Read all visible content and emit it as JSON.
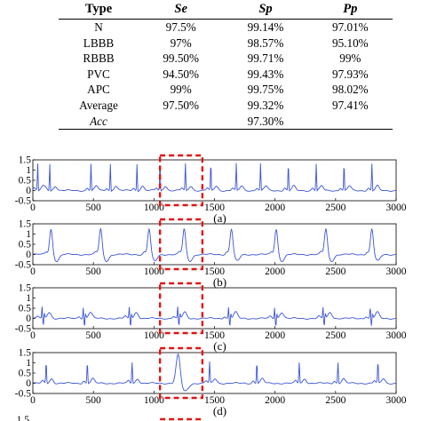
{
  "table": {
    "headers": [
      "Type",
      "Se",
      "Sp",
      "Pp"
    ],
    "rows": [
      [
        "N",
        "97.5%",
        "99.14%",
        "97.01%"
      ],
      [
        "LBBB",
        "97%",
        "98.57%",
        "95.10%"
      ],
      [
        "RBBB",
        "99.50%",
        "99.71%",
        "99%"
      ],
      [
        "PVC",
        "94.50%",
        "99.43%",
        "97.93%"
      ],
      [
        "APC",
        "99%",
        "99.75%",
        "98.02%"
      ],
      [
        "Average",
        "97.50%",
        "99.32%",
        "97.41%"
      ],
      [
        "Acc",
        "",
        "97.30%",
        ""
      ]
    ]
  },
  "chart_data": [
    {
      "type": "line",
      "panel_label": "(a)",
      "beat": "normal",
      "xlim": [
        0,
        3000
      ],
      "ylim": [
        -0.5,
        1.5
      ],
      "xticks": [
        0,
        500,
        1000,
        1500,
        2000,
        2500,
        3000
      ],
      "yticks": [
        -0.5,
        0,
        0.5,
        1,
        1.5
      ],
      "highlight_x": [
        1050,
        1400
      ],
      "beat_x": [
        40,
        140,
        480,
        640,
        860,
        1050,
        1260,
        1470,
        1680,
        1880,
        2110,
        2340,
        2570,
        2800
      ]
    },
    {
      "type": "line",
      "panel_label": "(b)",
      "beat": "lbbb",
      "xlim": [
        0,
        3000
      ],
      "ylim": [
        -0.5,
        1.5
      ],
      "xticks": [
        0,
        500,
        1000,
        1500,
        2000,
        2500,
        3000
      ],
      "yticks": [
        -0.5,
        0,
        0.5,
        1,
        1.5
      ],
      "highlight_x": [
        1050,
        1400
      ],
      "beat_x": [
        150,
        560,
        960,
        1250,
        1640,
        2010,
        2420,
        2800
      ]
    },
    {
      "type": "line",
      "panel_label": "(c)",
      "beat": "rbbb",
      "xlim": [
        0,
        3000
      ],
      "ylim": [
        -0.5,
        1.5
      ],
      "xticks": [
        0,
        500,
        1000,
        1500,
        2000,
        2500,
        3000
      ],
      "yticks": [
        -0.5,
        0,
        0.5,
        1,
        1.5
      ],
      "highlight_x": [
        1050,
        1400
      ],
      "beat_x": [
        80,
        420,
        800,
        1200,
        1620,
        2000,
        2400,
        2790
      ]
    },
    {
      "type": "line",
      "panel_label": "(d)",
      "beat": "pvc",
      "xlim": [
        0,
        3000
      ],
      "ylim": [
        -0.5,
        1.5
      ],
      "xticks": [
        0,
        500,
        1000,
        1500,
        2000,
        2500,
        3000
      ],
      "yticks": [
        -0.5,
        0,
        0.5,
        1,
        1.5
      ],
      "highlight_x": [
        1050,
        1400
      ],
      "beat_x": [
        110,
        450,
        820,
        1460,
        1850,
        2200,
        2520,
        2850
      ],
      "pvc_x": 1200
    },
    {
      "type": "line",
      "panel_label": "",
      "beat": "partial",
      "yticks": [
        1.5
      ]
    }
  ]
}
